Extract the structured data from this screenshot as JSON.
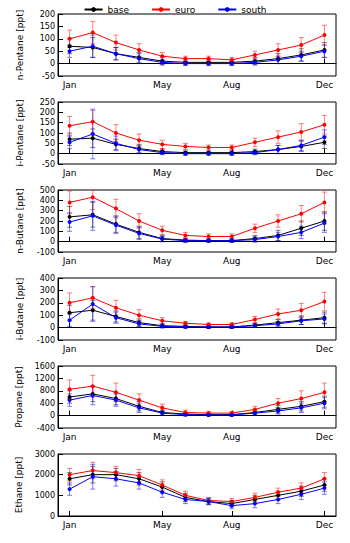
{
  "chart_data": [
    {
      "type": "line",
      "ylabel": "n-Pentane [ppt]",
      "legend": "top",
      "grid": false,
      "categories": [
        "Jan",
        null,
        null,
        null,
        "May",
        null,
        null,
        "Aug",
        null,
        null,
        null,
        "Dec"
      ],
      "ylim": [
        -50,
        200
      ],
      "yticks": [
        -50,
        0,
        50,
        100,
        150,
        200
      ],
      "series": [
        {
          "name": "base",
          "color": "#000000",
          "marker": "circle",
          "values": [
            70,
            65,
            40,
            25,
            10,
            5,
            5,
            5,
            10,
            20,
            35,
            55
          ],
          "errors": [
            30,
            40,
            25,
            20,
            15,
            10,
            10,
            10,
            15,
            20,
            25,
            30
          ]
        },
        {
          "name": "euro",
          "color": "#ff0000",
          "marker": "circle",
          "values": [
            100,
            125,
            85,
            55,
            30,
            20,
            20,
            15,
            35,
            55,
            75,
            115
          ],
          "errors": [
            35,
            45,
            30,
            25,
            15,
            10,
            10,
            10,
            15,
            25,
            30,
            40
          ]
        },
        {
          "name": "south",
          "color": "#0000ff",
          "marker": "circle",
          "values": [
            50,
            70,
            40,
            20,
            5,
            0,
            0,
            0,
            5,
            15,
            30,
            50
          ],
          "errors": [
            25,
            45,
            25,
            20,
            10,
            8,
            8,
            8,
            10,
            15,
            20,
            25
          ]
        }
      ]
    },
    {
      "type": "line",
      "ylabel": "i-Pentane [ppt]",
      "grid": false,
      "categories": [
        "Jan",
        null,
        null,
        null,
        "May",
        null,
        null,
        "Aug",
        null,
        null,
        null,
        "Dec"
      ],
      "ylim": [
        -50,
        250
      ],
      "yticks": [
        -50,
        0,
        50,
        100,
        150,
        200,
        250
      ],
      "series": [
        {
          "name": "base",
          "color": "#000000",
          "marker": "circle",
          "values": [
            70,
            75,
            45,
            25,
            10,
            5,
            5,
            5,
            10,
            20,
            35,
            55
          ],
          "errors": [
            30,
            45,
            25,
            20,
            12,
            8,
            8,
            8,
            12,
            20,
            25,
            30
          ]
        },
        {
          "name": "euro",
          "color": "#ff0000",
          "marker": "circle",
          "values": [
            135,
            155,
            100,
            65,
            45,
            35,
            30,
            30,
            55,
            80,
            105,
            140
          ],
          "errors": [
            45,
            55,
            40,
            30,
            20,
            15,
            12,
            12,
            20,
            30,
            40,
            45
          ]
        },
        {
          "name": "south",
          "color": "#0000ff",
          "marker": "circle",
          "values": [
            55,
            95,
            50,
            20,
            5,
            0,
            0,
            0,
            5,
            20,
            40,
            80
          ],
          "errors": [
            30,
            120,
            35,
            20,
            10,
            8,
            8,
            8,
            10,
            20,
            25,
            35
          ]
        }
      ]
    },
    {
      "type": "line",
      "ylabel": "n-Butane [ppt]",
      "grid": false,
      "categories": [
        "Jan",
        null,
        null,
        null,
        "May",
        null,
        null,
        "Aug",
        null,
        null,
        null,
        "Dec"
      ],
      "ylim": [
        -100,
        500
      ],
      "yticks": [
        -100,
        0,
        100,
        200,
        300,
        400,
        500
      ],
      "series": [
        {
          "name": "base",
          "color": "#000000",
          "marker": "circle",
          "values": [
            240,
            260,
            170,
            90,
            30,
            15,
            10,
            10,
            30,
            60,
            130,
            200
          ],
          "errors": [
            100,
            120,
            80,
            60,
            30,
            20,
            15,
            15,
            30,
            50,
            70,
            90
          ]
        },
        {
          "name": "euro",
          "color": "#ff0000",
          "marker": "circle",
          "values": [
            380,
            430,
            320,
            200,
            110,
            60,
            50,
            50,
            130,
            200,
            270,
            380
          ],
          "errors": [
            110,
            120,
            90,
            70,
            40,
            30,
            25,
            25,
            40,
            60,
            80,
            100
          ]
        },
        {
          "name": "south",
          "color": "#0000ff",
          "marker": "circle",
          "values": [
            190,
            250,
            160,
            80,
            25,
            10,
            10,
            10,
            20,
            50,
            90,
            180
          ],
          "errors": [
            90,
            140,
            80,
            60,
            25,
            15,
            15,
            15,
            25,
            40,
            60,
            90
          ]
        }
      ]
    },
    {
      "type": "line",
      "ylabel": "i-Butane [ppt]",
      "grid": false,
      "categories": [
        "Jan",
        null,
        null,
        null,
        "May",
        null,
        null,
        "Aug",
        null,
        null,
        null,
        "Dec"
      ],
      "ylim": [
        -100,
        400
      ],
      "yticks": [
        -100,
        0,
        100,
        200,
        300,
        400
      ],
      "series": [
        {
          "name": "base",
          "color": "#000000",
          "marker": "circle",
          "values": [
            120,
            140,
            90,
            40,
            15,
            10,
            5,
            5,
            20,
            40,
            60,
            80
          ],
          "errors": [
            60,
            80,
            45,
            30,
            15,
            10,
            10,
            10,
            15,
            25,
            35,
            45
          ]
        },
        {
          "name": "euro",
          "color": "#ff0000",
          "marker": "circle",
          "values": [
            200,
            240,
            160,
            100,
            55,
            35,
            25,
            25,
            65,
            110,
            140,
            210
          ],
          "errors": [
            80,
            90,
            60,
            45,
            25,
            15,
            12,
            12,
            25,
            40,
            55,
            75
          ]
        },
        {
          "name": "south",
          "color": "#0000ff",
          "marker": "circle",
          "values": [
            60,
            190,
            80,
            30,
            10,
            5,
            5,
            5,
            15,
            30,
            55,
            70
          ],
          "errors": [
            50,
            140,
            45,
            25,
            12,
            10,
            10,
            10,
            12,
            20,
            30,
            40
          ]
        }
      ]
    },
    {
      "type": "line",
      "ylabel": "Propane [ppt]",
      "grid": false,
      "categories": [
        "Jan",
        null,
        null,
        null,
        "May",
        null,
        null,
        "Aug",
        null,
        null,
        null,
        "Dec"
      ],
      "ylim": [
        -400,
        1600
      ],
      "yticks": [
        -400,
        0,
        400,
        800,
        1200,
        1600
      ],
      "series": [
        {
          "name": "base",
          "color": "#000000",
          "marker": "circle",
          "values": [
            600,
            700,
            550,
            300,
            100,
            50,
            30,
            30,
            100,
            200,
            300,
            450
          ],
          "errors": [
            200,
            250,
            200,
            150,
            80,
            50,
            40,
            40,
            80,
            120,
            150,
            180
          ]
        },
        {
          "name": "euro",
          "color": "#ff0000",
          "marker": "circle",
          "values": [
            850,
            950,
            750,
            500,
            250,
            100,
            80,
            80,
            200,
            400,
            550,
            750
          ],
          "errors": [
            300,
            350,
            300,
            200,
            120,
            80,
            60,
            60,
            100,
            150,
            250,
            300
          ]
        },
        {
          "name": "south",
          "color": "#0000ff",
          "marker": "circle",
          "values": [
            500,
            650,
            500,
            250,
            80,
            30,
            20,
            20,
            80,
            150,
            250,
            400
          ],
          "errors": [
            200,
            300,
            200,
            150,
            70,
            40,
            30,
            30,
            60,
            100,
            150,
            180
          ]
        }
      ]
    },
    {
      "type": "line",
      "ylabel": "Ethane [ppt]",
      "grid": false,
      "categories": [
        "Jan",
        null,
        null,
        null,
        "May",
        null,
        null,
        "Aug",
        null,
        null,
        null,
        "Dec"
      ],
      "ylim": [
        0,
        3000
      ],
      "yticks": [
        0,
        1000,
        2000,
        3000
      ],
      "series": [
        {
          "name": "base",
          "color": "#000000",
          "marker": "circle",
          "values": [
            1800,
            2000,
            2000,
            1800,
            1400,
            900,
            700,
            600,
            800,
            1000,
            1200,
            1500
          ],
          "errors": [
            300,
            400,
            300,
            300,
            250,
            200,
            150,
            150,
            200,
            200,
            250,
            300
          ]
        },
        {
          "name": "euro",
          "color": "#ff0000",
          "marker": "circle",
          "values": [
            2000,
            2200,
            2100,
            1950,
            1500,
            1000,
            750,
            700,
            900,
            1150,
            1350,
            1800
          ],
          "errors": [
            300,
            400,
            300,
            300,
            250,
            200,
            150,
            150,
            200,
            200,
            250,
            300
          ]
        },
        {
          "name": "south",
          "color": "#0000ff",
          "marker": "circle",
          "values": [
            1300,
            1900,
            1800,
            1600,
            1150,
            800,
            700,
            500,
            600,
            800,
            1050,
            1350
          ],
          "errors": [
            300,
            600,
            350,
            300,
            250,
            200,
            150,
            150,
            200,
            200,
            250,
            300
          ]
        }
      ]
    }
  ]
}
